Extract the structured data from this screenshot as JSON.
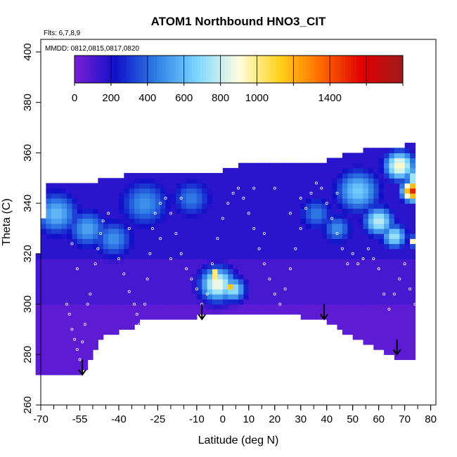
{
  "chart_data": {
    "type": "heatmap",
    "title": "ATOM1 Northbound HNO3_CIT",
    "flights_note": "Flts: 6,7,8,9",
    "dates_note": "MMDD: 0812,0815,0817,0820",
    "xlabel": "Latitude (deg N)",
    "ylabel": "Theta (C)",
    "xlim": [
      -70,
      82
    ],
    "ylim": [
      260,
      405
    ],
    "x_ticks_major": [
      -70,
      -55,
      -40,
      -25,
      -10,
      0,
      10,
      20,
      30,
      40,
      50,
      60,
      70,
      80
    ],
    "x_tick_labels": [
      "-70",
      "-55",
      "-40",
      "-25",
      "-10",
      "0",
      "10",
      "20",
      "30",
      "40",
      "50",
      "60",
      "70",
      "80"
    ],
    "x_ticks_minor_step": 5,
    "y_ticks": [
      260,
      280,
      300,
      320,
      340,
      360,
      380,
      400
    ],
    "y_tick_labels": [
      "260",
      "280",
      "300",
      "320",
      "340",
      "360",
      "380",
      "400"
    ],
    "colorbar": {
      "range": [
        0,
        1800
      ],
      "colors": [
        "#7a1fd8",
        "#1010c8",
        "#2f7fe6",
        "#7fd8ff",
        "#fffde0",
        "#ffd21a",
        "#ff6a00",
        "#e00000",
        "#9e1a1a"
      ],
      "ticks": [
        0,
        200,
        400,
        600,
        800,
        1000,
        1400
      ],
      "tick_labels": [
        "0",
        "200",
        "400",
        "600",
        "800",
        "1000",
        "1400"
      ]
    },
    "lower_boundary": [
      [
        -72,
        272
      ],
      [
        -58,
        272
      ],
      [
        -52,
        276
      ],
      [
        -47,
        288
      ],
      [
        -42,
        289
      ],
      [
        -35,
        292
      ],
      [
        -30,
        295
      ],
      [
        -10,
        296
      ],
      [
        0,
        296
      ],
      [
        10,
        298
      ],
      [
        20,
        296
      ],
      [
        30,
        296
      ],
      [
        40,
        294
      ],
      [
        50,
        288
      ],
      [
        60,
        283
      ],
      [
        70,
        278
      ],
      [
        74,
        278
      ],
      [
        74,
        276
      ]
    ],
    "upper_boundary": [
      [
        -72,
        312
      ],
      [
        -67,
        346
      ],
      [
        -60,
        347
      ],
      [
        -52,
        347
      ],
      [
        -44,
        349
      ],
      [
        -30,
        351
      ],
      [
        -20,
        352
      ],
      [
        -10,
        352
      ],
      [
        0,
        352
      ],
      [
        10,
        355
      ],
      [
        20,
        355
      ],
      [
        30,
        355
      ],
      [
        40,
        356
      ],
      [
        50,
        359
      ],
      [
        60,
        362
      ],
      [
        70,
        362
      ],
      [
        74,
        364
      ],
      [
        76,
        334
      ],
      [
        79,
        310
      ],
      [
        80,
        295
      ]
    ],
    "color_blobs": [
      {
        "lat": -64,
        "theta": 336,
        "value": 600,
        "spread": 9
      },
      {
        "lat": -52,
        "theta": 330,
        "value": 550,
        "spread": 8
      },
      {
        "lat": -42,
        "theta": 326,
        "value": 500,
        "spread": 8
      },
      {
        "lat": -30,
        "theta": 340,
        "value": 500,
        "spread": 10
      },
      {
        "lat": -12,
        "theta": 342,
        "value": 450,
        "spread": 8
      },
      {
        "lat": -2,
        "theta": 308,
        "value": 900,
        "spread": 7
      },
      {
        "lat": 4,
        "theta": 306,
        "value": 750,
        "spread": 5
      },
      {
        "lat": -3,
        "theta": 312,
        "value": 1300,
        "spread": 2
      },
      {
        "lat": 3,
        "theta": 307,
        "value": 1150,
        "spread": 2
      },
      {
        "lat": 36,
        "theta": 336,
        "value": 450,
        "spread": 7
      },
      {
        "lat": 44,
        "theta": 330,
        "value": 500,
        "spread": 6
      },
      {
        "lat": 52,
        "theta": 345,
        "value": 650,
        "spread": 9
      },
      {
        "lat": 60,
        "theta": 333,
        "value": 800,
        "spread": 6
      },
      {
        "lat": 66,
        "theta": 327,
        "value": 750,
        "spread": 5
      },
      {
        "lat": 68,
        "theta": 355,
        "value": 950,
        "spread": 6
      },
      {
        "lat": 73,
        "theta": 345,
        "value": 1500,
        "spread": 4
      },
      {
        "lat": 76,
        "theta": 350,
        "value": 1100,
        "spread": 5
      },
      {
        "lat": 74,
        "theta": 325,
        "value": 1200,
        "spread": 2
      }
    ],
    "observation_points": [
      [
        -60,
        300
      ],
      [
        -59,
        296
      ],
      [
        -58,
        290
      ],
      [
        -57,
        286
      ],
      [
        -56,
        282
      ],
      [
        -55,
        278
      ],
      [
        -54,
        285
      ],
      [
        -53,
        292
      ],
      [
        -52,
        300
      ],
      [
        -51,
        304
      ],
      [
        -49,
        316
      ],
      [
        -48,
        322
      ],
      [
        -47,
        328
      ],
      [
        -46,
        333
      ],
      [
        -40,
        318
      ],
      [
        -38,
        312
      ],
      [
        -36,
        305
      ],
      [
        -34,
        300
      ],
      [
        -33,
        296
      ],
      [
        -32,
        292
      ],
      [
        -30,
        300
      ],
      [
        -29,
        310
      ],
      [
        -28,
        320
      ],
      [
        -27,
        330
      ],
      [
        -26,
        336
      ],
      [
        -24,
        340
      ],
      [
        -22,
        342
      ],
      [
        -20,
        336
      ],
      [
        -18,
        328
      ],
      [
        -16,
        320
      ],
      [
        -14,
        314
      ],
      [
        -12,
        310
      ],
      [
        -10,
        306
      ],
      [
        -8,
        300
      ],
      [
        -6,
        304
      ],
      [
        -4,
        316
      ],
      [
        -2,
        326
      ],
      [
        0,
        334
      ],
      [
        2,
        340
      ],
      [
        4,
        344
      ],
      [
        6,
        346
      ],
      [
        8,
        342
      ],
      [
        10,
        336
      ],
      [
        12,
        330
      ],
      [
        14,
        322
      ],
      [
        16,
        316
      ],
      [
        18,
        310
      ],
      [
        20,
        304
      ],
      [
        22,
        300
      ],
      [
        24,
        306
      ],
      [
        26,
        314
      ],
      [
        28,
        322
      ],
      [
        30,
        330
      ],
      [
        32,
        338
      ],
      [
        34,
        344
      ],
      [
        36,
        348
      ],
      [
        38,
        346
      ],
      [
        40,
        340
      ],
      [
        42,
        334
      ],
      [
        44,
        328
      ],
      [
        46,
        322
      ],
      [
        48,
        316
      ],
      [
        50,
        320
      ],
      [
        52,
        316
      ],
      [
        54,
        318
      ],
      [
        56,
        322
      ],
      [
        58,
        318
      ],
      [
        60,
        314
      ],
      [
        62,
        304
      ],
      [
        64,
        298
      ],
      [
        66,
        304
      ],
      [
        68,
        310
      ],
      [
        70,
        316
      ],
      [
        72,
        306
      ],
      [
        74,
        300
      ],
      [
        76,
        296
      ],
      [
        78,
        304
      ],
      [
        -56,
        314
      ],
      [
        -58,
        324
      ],
      [
        -44,
        336
      ],
      [
        -36,
        330
      ],
      [
        -16,
        342
      ],
      [
        12,
        346
      ],
      [
        20,
        346
      ],
      [
        30,
        342
      ],
      [
        44,
        344
      ],
      [
        -20,
        318
      ],
      [
        -24,
        326
      ],
      [
        16,
        328
      ],
      [
        26,
        336
      ]
    ],
    "arrows": [
      {
        "lat": -54,
        "theta": 278,
        "theta_end": 272
      },
      {
        "lat": -8,
        "theta": 300,
        "theta_end": 294
      },
      {
        "lat": 39,
        "theta": 300,
        "theta_end": 294
      },
      {
        "lat": 67,
        "theta": 286,
        "theta_end": 280
      }
    ]
  }
}
